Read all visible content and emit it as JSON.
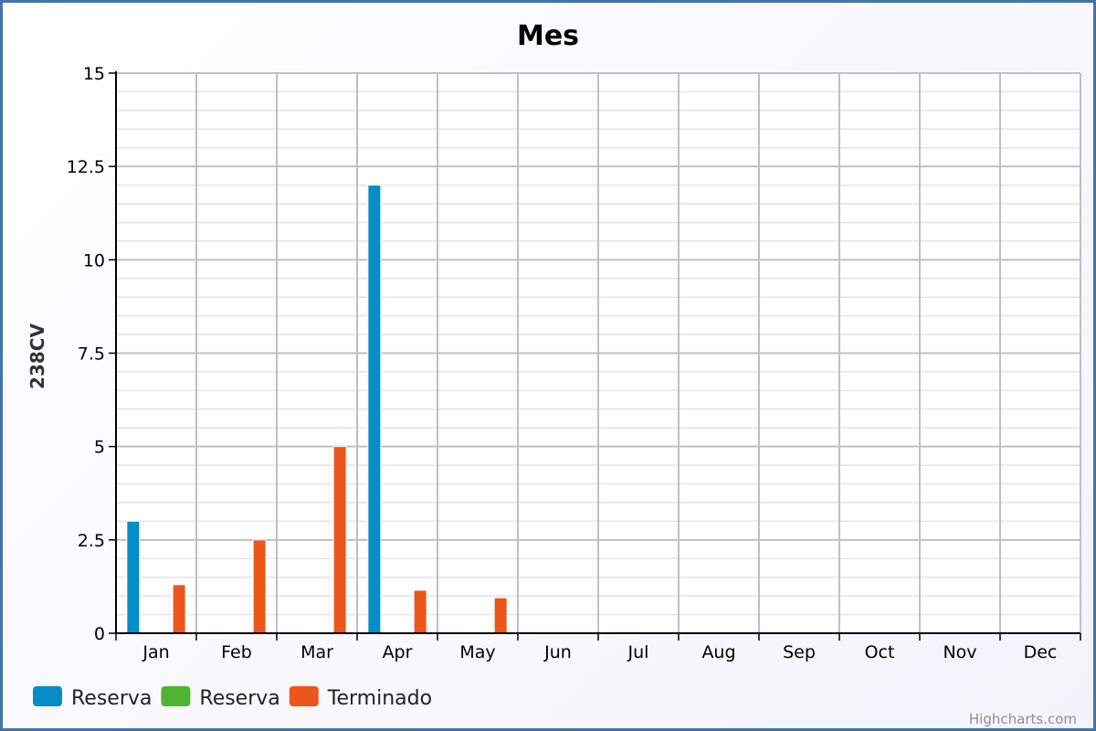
{
  "chart_data": {
    "type": "bar",
    "title": "Mes",
    "ylabel": "238CV",
    "xlabel": "",
    "categories": [
      "Jan",
      "Feb",
      "Mar",
      "Apr",
      "May",
      "Jun",
      "Jul",
      "Aug",
      "Sep",
      "Oct",
      "Nov",
      "Dec"
    ],
    "yticks": [
      "0",
      "2.5",
      "5",
      "7.5",
      "10",
      "12.5",
      "15"
    ],
    "ylim": [
      0,
      15
    ],
    "grid": true,
    "legend_position": "bottom-left",
    "series": [
      {
        "name": "Reserva",
        "color": "#058DC7",
        "values": [
          3,
          0,
          0,
          12,
          0,
          0,
          0,
          0,
          0,
          0,
          0,
          0
        ]
      },
      {
        "name": "Reserva",
        "color": "#50B432",
        "values": [
          0,
          0,
          0,
          0,
          0,
          0,
          0,
          0,
          0,
          0,
          0,
          0
        ]
      },
      {
        "name": "Terminado",
        "color": "#ED561B",
        "values": [
          1.3,
          2.5,
          5,
          1.15,
          0.95,
          0,
          0,
          0,
          0,
          0,
          0,
          0
        ]
      }
    ],
    "credits": "Highcharts.com"
  }
}
